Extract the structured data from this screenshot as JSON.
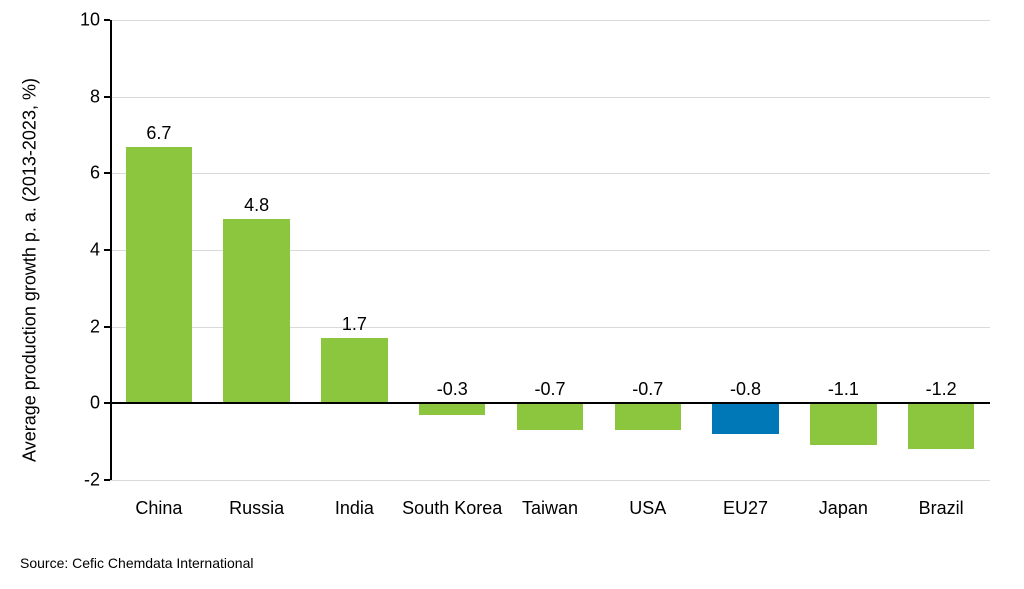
{
  "chart": {
    "type": "bar",
    "y_axis_label": "Average production growth p. a. (2013-2023, %)",
    "ylim": [
      -2,
      10
    ],
    "ytick_step": 2,
    "yticks": [
      -2,
      0,
      2,
      4,
      6,
      8,
      10
    ],
    "categories": [
      "China",
      "Russia",
      "India",
      "South Korea",
      "Taiwan",
      "USA",
      "EU27",
      "Japan",
      "Brazil"
    ],
    "values": [
      6.7,
      4.8,
      1.7,
      -0.3,
      -0.7,
      -0.7,
      -0.8,
      -1.1,
      -1.2
    ],
    "bar_colors": [
      "#8cc63f",
      "#8cc63f",
      "#8cc63f",
      "#8cc63f",
      "#8cc63f",
      "#8cc63f",
      "#0077b6",
      "#8cc63f",
      "#8cc63f"
    ],
    "bar_width": 0.68,
    "background_color": "#ffffff",
    "grid_color": "#d9d9d9",
    "axis_color": "#000000",
    "label_fontsize": 18,
    "tick_fontsize": 18,
    "value_label_fontsize": 18
  },
  "source": "Source: Cefic Chemdata International"
}
